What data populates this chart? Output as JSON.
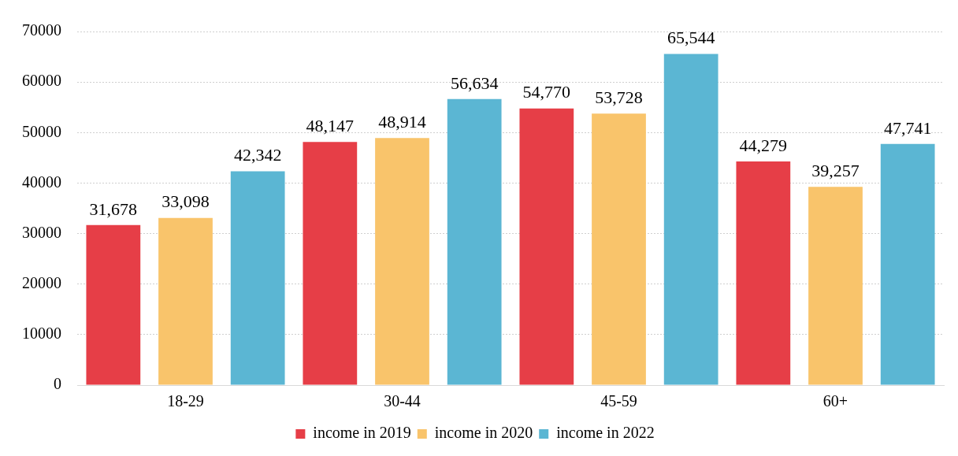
{
  "chart_data": {
    "type": "bar",
    "categories": [
      "18-29",
      "30-44",
      "45-59",
      "60+"
    ],
    "series": [
      {
        "name": "income in 2019",
        "color": "#e63e47",
        "values": [
          31678,
          48147,
          54770,
          44279
        ],
        "value_labels": [
          "31,678",
          "48,147",
          "54,770",
          "44,279"
        ]
      },
      {
        "name": "income in 2020",
        "color": "#f9c46b",
        "values": [
          33098,
          48914,
          53728,
          39257
        ],
        "value_labels": [
          "33,098",
          "48,914",
          "53,728",
          "39,257"
        ]
      },
      {
        "name": "income in 2022",
        "color": "#5bb6d3",
        "values": [
          42342,
          56634,
          65544,
          47741
        ],
        "value_labels": [
          "42,342",
          "56,634",
          "65,544",
          "47,741"
        ]
      }
    ],
    "ylim": [
      0,
      70000
    ],
    "yticks": [
      0,
      10000,
      20000,
      30000,
      40000,
      50000,
      60000,
      70000
    ],
    "grid": "y",
    "legend": "bottom"
  }
}
